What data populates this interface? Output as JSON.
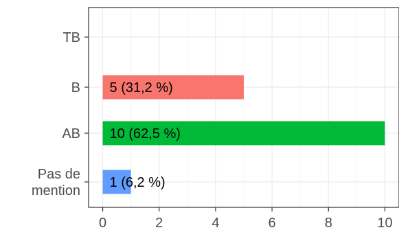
{
  "chart_data": {
    "type": "bar",
    "orientation": "horizontal",
    "categories": [
      "TB",
      "B",
      "AB",
      "Pas de\nmention"
    ],
    "values": [
      0,
      5,
      10,
      1
    ],
    "data_labels": [
      "",
      "5 (31,2 %)",
      "10 (62,5 %)",
      "1 (6,2 %)"
    ],
    "colors": [
      "#C77CFF",
      "#F8766D",
      "#00BA38",
      "#619CFF"
    ],
    "x_ticks": [
      "0",
      "2",
      "4",
      "6",
      "8",
      "10"
    ],
    "xlim": [
      -0.5,
      10.5
    ],
    "grid": true,
    "title": "",
    "xlabel": "",
    "ylabel": "",
    "legend": "none"
  }
}
